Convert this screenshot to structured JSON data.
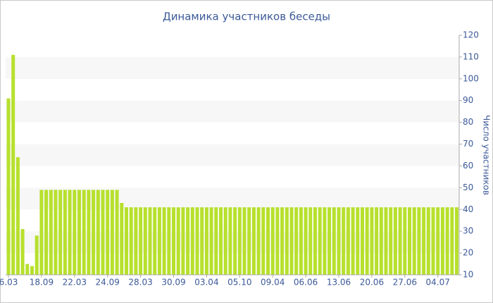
{
  "chart_data": {
    "type": "bar",
    "title": "Динамика участников беседы",
    "y_label": "Число участников",
    "color": "#b7e02d",
    "ylim": [
      10,
      120
    ],
    "yticks": [
      10,
      20,
      30,
      40,
      50,
      60,
      70,
      80,
      90,
      100,
      110,
      120
    ],
    "categories": [
      "6.03",
      null,
      null,
      null,
      null,
      null,
      null,
      "18.09",
      null,
      null,
      null,
      null,
      null,
      null,
      "22.03",
      null,
      null,
      null,
      null,
      null,
      null,
      "24.09",
      null,
      null,
      null,
      null,
      null,
      null,
      "28.03",
      null,
      null,
      null,
      null,
      null,
      null,
      "30.09",
      null,
      null,
      null,
      null,
      null,
      null,
      "03.04",
      null,
      null,
      null,
      null,
      null,
      null,
      "05.10",
      null,
      null,
      null,
      null,
      null,
      null,
      "09.04",
      null,
      null,
      null,
      null,
      null,
      null,
      "06.06",
      null,
      null,
      null,
      null,
      null,
      null,
      "13.06",
      null,
      null,
      null,
      null,
      null,
      null,
      "20.06",
      null,
      null,
      null,
      null,
      null,
      null,
      "27.06",
      null,
      null,
      null,
      null,
      null,
      null,
      "04.07",
      null,
      null,
      null,
      null
    ],
    "values": [
      91,
      111,
      64,
      31,
      15,
      14,
      28,
      49,
      49,
      49,
      49,
      49,
      49,
      49,
      49,
      49,
      49,
      49,
      49,
      49,
      49,
      49,
      49,
      49,
      43,
      41,
      41,
      41,
      41,
      41,
      41,
      41,
      41,
      41,
      41,
      41,
      41,
      41,
      41,
      41,
      41,
      41,
      41,
      41,
      41,
      41,
      41,
      41,
      41,
      41,
      41,
      41,
      41,
      41,
      41,
      41,
      41,
      41,
      41,
      41,
      41,
      41,
      41,
      41,
      41,
      41,
      41,
      41,
      41,
      41,
      41,
      41,
      41,
      41,
      41,
      41,
      41,
      41,
      41,
      41,
      41,
      41,
      41,
      41,
      41,
      41,
      41,
      41,
      41,
      41,
      41,
      41,
      41,
      41,
      41,
      41
    ]
  }
}
